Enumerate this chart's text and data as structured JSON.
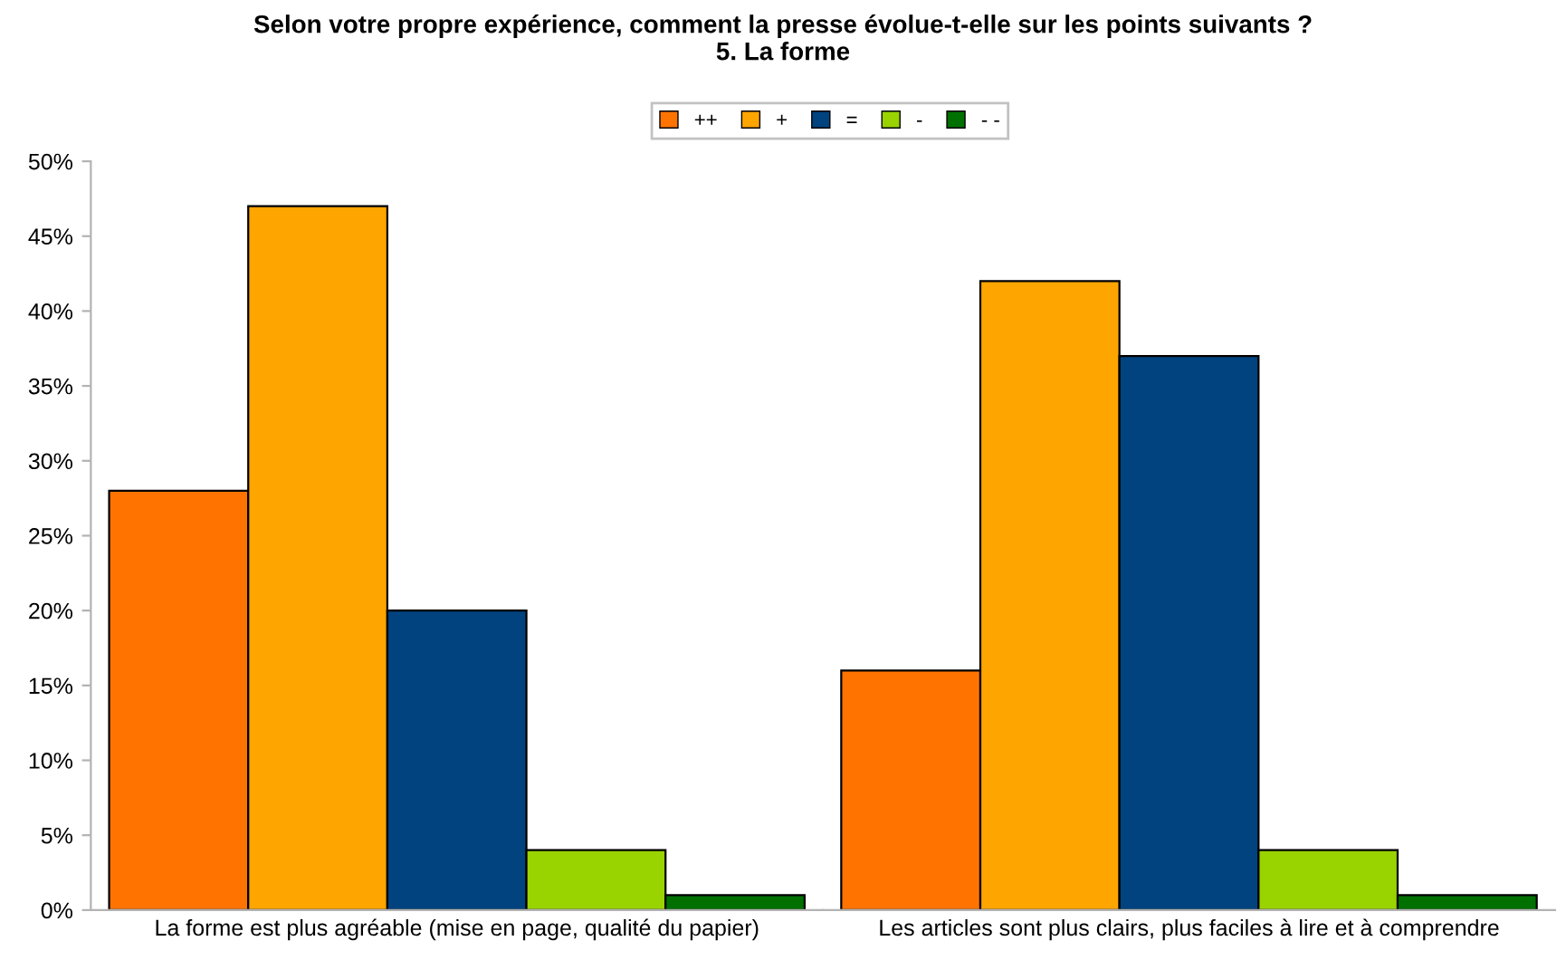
{
  "chart_data": {
    "type": "bar",
    "title": "Selon votre propre expérience, comment la presse évolue-t-elle sur les points suivants ?\n5. La forme",
    "categories": [
      "La forme est plus agréable (mise en page, qualité du papier)",
      "Les articles sont plus clairs, plus faciles à lire et à comprendre"
    ],
    "series": [
      {
        "name": "++",
        "color": "#ff7400",
        "values": [
          28,
          16
        ]
      },
      {
        "name": "+",
        "color": "#ffa500",
        "values": [
          47,
          42
        ]
      },
      {
        "name": "=",
        "color": "#00437f",
        "values": [
          20,
          37
        ]
      },
      {
        "name": "-",
        "color": "#99d300",
        "values": [
          4,
          4
        ]
      },
      {
        "name": "- -",
        "color": "#007100",
        "values": [
          1,
          1
        ]
      }
    ],
    "ylim": [
      0,
      50
    ],
    "yticks": [
      {
        "value": 0,
        "label": "0%"
      },
      {
        "value": 5,
        "label": "5%"
      },
      {
        "value": 10,
        "label": "10%"
      },
      {
        "value": 15,
        "label": "15%"
      },
      {
        "value": 20,
        "label": "20%"
      },
      {
        "value": 25,
        "label": "25%"
      },
      {
        "value": 30,
        "label": "30%"
      },
      {
        "value": 35,
        "label": "35%"
      },
      {
        "value": 40,
        "label": "40%"
      },
      {
        "value": 45,
        "label": "45%"
      },
      {
        "value": 50,
        "label": "50%"
      }
    ],
    "grid": false,
    "legend": "top"
  }
}
